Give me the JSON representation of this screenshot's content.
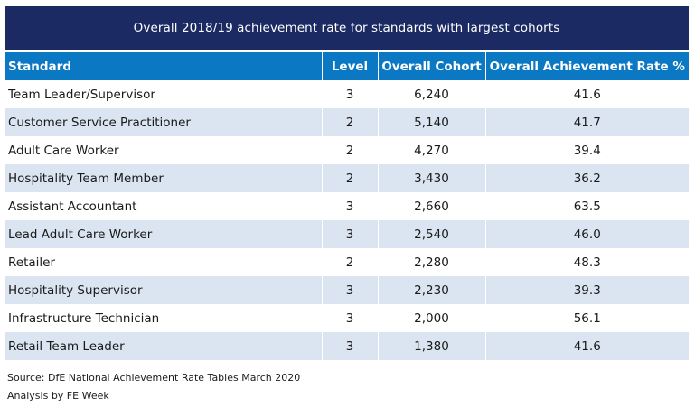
{
  "title": "Overall 2018/19 achievement rate for standards with largest cohorts",
  "columns": [
    "Standard",
    "Level",
    "Overall Cohort",
    "Overall Achievement Rate %"
  ],
  "rows": [
    {
      "standard": "Team Leader/Supervisor",
      "level": "3",
      "cohort": "6,240",
      "rate": "41.6"
    },
    {
      "standard": "Customer Service Practitioner",
      "level": "2",
      "cohort": "5,140",
      "rate": "41.7"
    },
    {
      "standard": "Adult Care Worker",
      "level": "2",
      "cohort": "4,270",
      "rate": "39.4"
    },
    {
      "standard": "Hospitality Team Member",
      "level": "2",
      "cohort": "3,430",
      "rate": "36.2"
    },
    {
      "standard": "Assistant Accountant",
      "level": "3",
      "cohort": "2,660",
      "rate": "63.5"
    },
    {
      "standard": "Lead Adult Care Worker",
      "level": "3",
      "cohort": "2,540",
      "rate": "46.0"
    },
    {
      "standard": "Retailer",
      "level": "2",
      "cohort": "2,280",
      "rate": "48.3"
    },
    {
      "standard": "Hospitality Supervisor",
      "level": "3",
      "cohort": "2,230",
      "rate": "39.3"
    },
    {
      "standard": "Infrastructure Technician",
      "level": "3",
      "cohort": "2,000",
      "rate": "56.1"
    },
    {
      "standard": "Retail Team Leader",
      "level": "3",
      "cohort": "1,380",
      "rate": "41.6"
    }
  ],
  "footer": {
    "source": "Source: DfE National Achievement Rate Tables March 2020",
    "analysis": "Analysis by FE Week"
  },
  "colors": {
    "title_bg": "#1b2a63",
    "header_bg": "#0b78c4",
    "stripe_bg": "#dbe5f1"
  }
}
